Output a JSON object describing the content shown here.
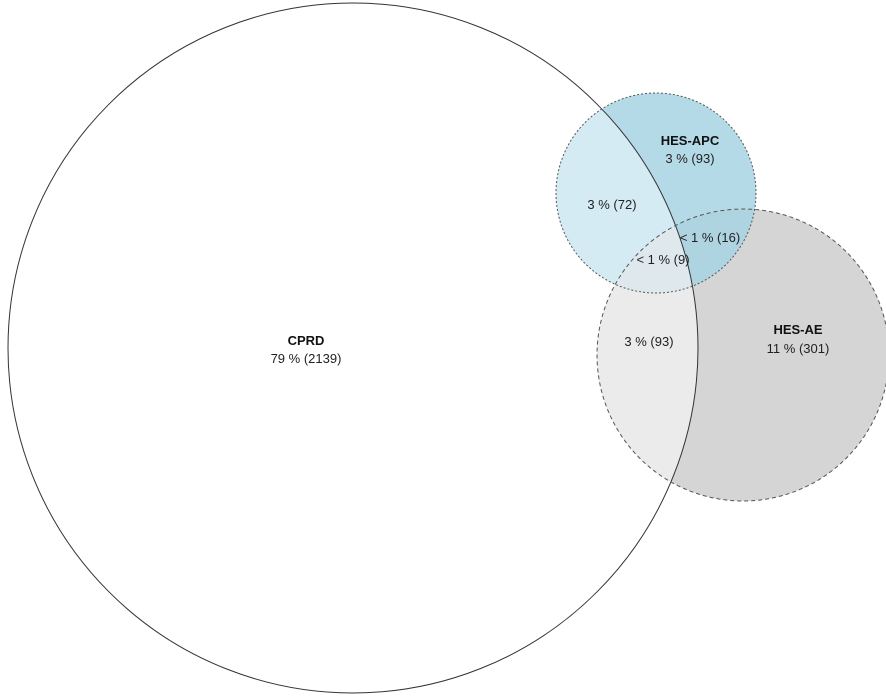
{
  "sets": {
    "cprd": {
      "name": "CPRD",
      "value": "79 % (2139)"
    },
    "hes_apc": {
      "name": "HES-APC",
      "value": "3 % (93)"
    },
    "hes_ae": {
      "name": "HES-AE",
      "value": "11 % (301)"
    }
  },
  "intersections": {
    "cprd_apc": "3 % (72)",
    "apc_ae": "< 1 % (16)",
    "all_three": "< 1 % (9)",
    "cprd_ae": "3 % (93)"
  },
  "colors": {
    "apc_fill": "#a8d4e3",
    "ae_fill": "#d3d3d3",
    "outline": "#333333"
  }
}
